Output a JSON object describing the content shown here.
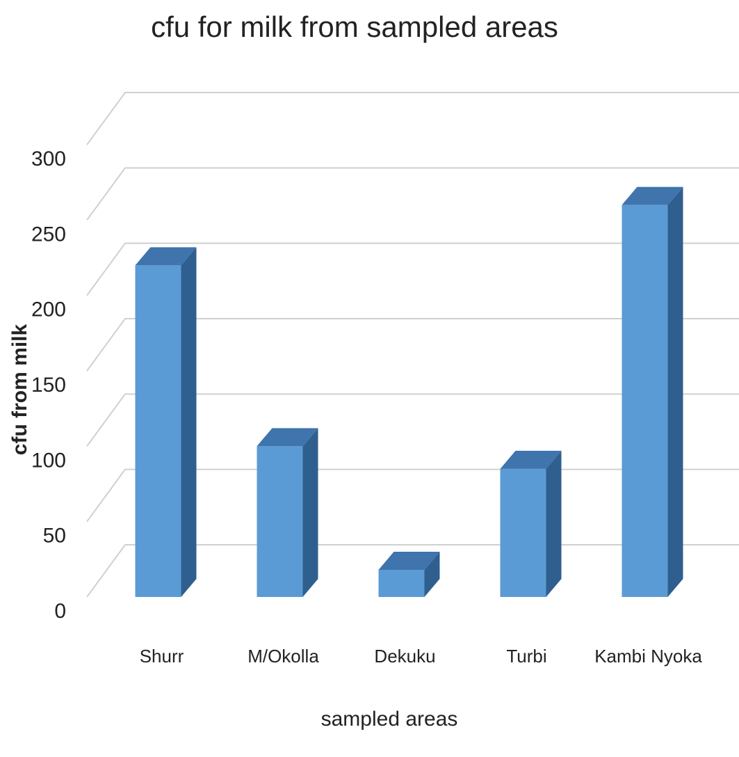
{
  "chart_data": {
    "type": "bar",
    "title": "cfu for milk from sampled areas",
    "x_label": "sampled areas",
    "y_label": "cfu from milk",
    "categories": [
      "Shurr",
      "M/Okolla",
      "Dekuku",
      "Turbi",
      "Kambi Nyoka"
    ],
    "values": [
      220,
      100,
      18,
      85,
      260
    ],
    "color": "#5b9bd5",
    "ylim": [
      0,
      300
    ],
    "yticks": [
      0,
      50,
      100,
      150,
      200,
      250,
      300
    ],
    "grid": true
  }
}
